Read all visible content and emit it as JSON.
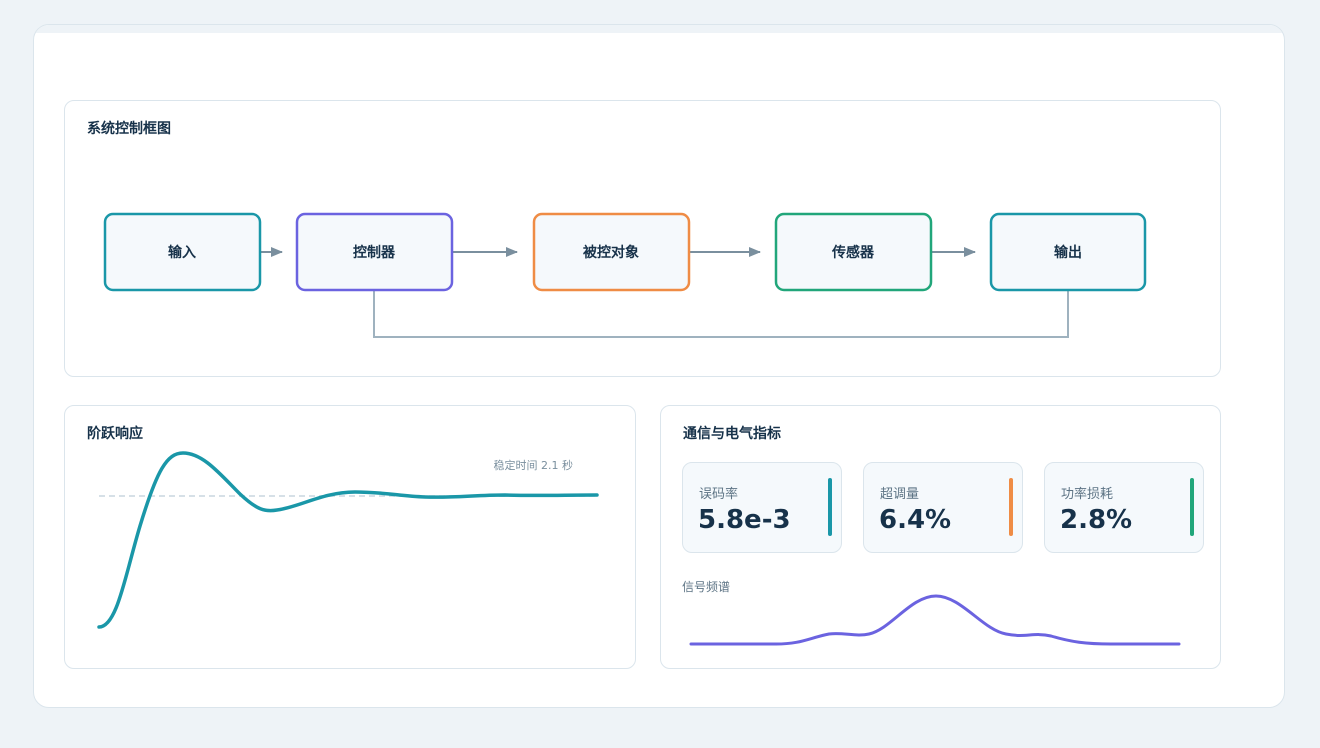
{
  "diagram": {
    "title": "系统控制框图",
    "blocks": [
      {
        "id": "input",
        "label": "输入",
        "color": "#1a97a8"
      },
      {
        "id": "controller",
        "label": "控制器",
        "color": "#6b63e0"
      },
      {
        "id": "plant",
        "label": "被控对象",
        "color": "#ef8c45"
      },
      {
        "id": "sensor",
        "label": "传感器",
        "color": "#21a67a"
      },
      {
        "id": "output",
        "label": "输出",
        "color": "#1a97a8"
      }
    ],
    "feedback": {
      "from": "output",
      "to": "controller"
    }
  },
  "step_response": {
    "title": "阶跃响应",
    "annotation": "稳定时间 2.1 秒",
    "line_color": "#1a97a8"
  },
  "metrics": {
    "title": "通信与电气指标",
    "items": [
      {
        "label": "误码率",
        "value": "5.8e-3",
        "color": "#1a97a8"
      },
      {
        "label": "超调量",
        "value": "6.4%",
        "color": "#ef8c45"
      },
      {
        "label": "功率损耗",
        "value": "2.8%",
        "color": "#21a67a"
      }
    ],
    "spectrum_label": "信号频谱",
    "spectrum_color": "#6b63e0"
  }
}
